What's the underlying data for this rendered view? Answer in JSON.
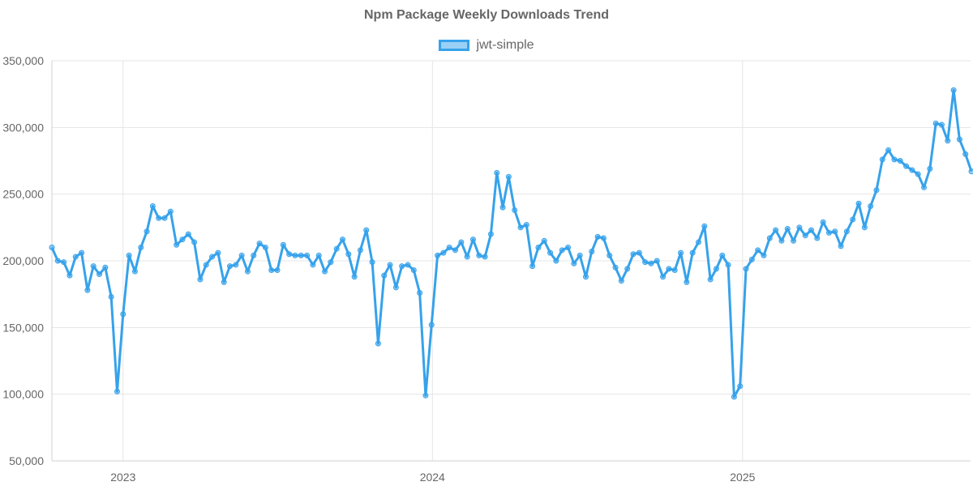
{
  "chart_data": {
    "type": "line",
    "title": "Npm Package Weekly Downloads Trend",
    "xlabel": "",
    "ylabel": "",
    "ylim": [
      50000,
      350000
    ],
    "yticks": [
      {
        "value": 50000,
        "label": "50,000"
      },
      {
        "value": 100000,
        "label": "100,000"
      },
      {
        "value": 150000,
        "label": "150,000"
      },
      {
        "value": 200000,
        "label": "200,000"
      },
      {
        "value": 250000,
        "label": "250,000"
      },
      {
        "value": 300000,
        "label": "300,000"
      },
      {
        "value": 350000,
        "label": "350,000"
      }
    ],
    "xlim": [
      "2022-10-09",
      "2025-09-27"
    ],
    "xticks": [
      {
        "value": "2023-01-01",
        "label": "2023"
      },
      {
        "value": "2024-01-01",
        "label": "2024"
      },
      {
        "value": "2025-01-01",
        "label": "2025"
      }
    ],
    "legend": "top-center",
    "grid": true,
    "colors": {
      "line": "#36a2eb",
      "fill": "rgba(54,162,235,0.5)",
      "grid": "#e5e5e5",
      "text": "#666666"
    },
    "series": [
      {
        "name": "jwt-simple",
        "start_date": "2022-10-09",
        "interval": "weekly",
        "values": [
          210000,
          200000,
          199000,
          189000,
          203000,
          206000,
          178000,
          196000,
          190000,
          195000,
          173000,
          102000,
          160000,
          204000,
          192000,
          210000,
          222000,
          241000,
          232000,
          232000,
          237000,
          212000,
          216000,
          220000,
          214000,
          186000,
          197000,
          203000,
          206000,
          184000,
          196000,
          197000,
          204000,
          192000,
          204000,
          213000,
          210000,
          193000,
          193000,
          212000,
          205000,
          204000,
          204000,
          204000,
          197000,
          204000,
          192000,
          199000,
          209000,
          216000,
          205000,
          188000,
          208000,
          223000,
          199000,
          138000,
          189000,
          197000,
          180000,
          196000,
          197000,
          193000,
          176000,
          99000,
          152000,
          204000,
          206000,
          210000,
          208000,
          214000,
          203000,
          216000,
          204000,
          203000,
          220000,
          266000,
          240000,
          263000,
          238000,
          225000,
          227000,
          196000,
          210000,
          215000,
          206000,
          200000,
          208000,
          210000,
          198000,
          204000,
          188000,
          207000,
          218000,
          217000,
          204000,
          195000,
          185000,
          194000,
          205000,
          206000,
          199000,
          198000,
          200000,
          188000,
          194000,
          193000,
          206000,
          184000,
          206000,
          214000,
          226000,
          186000,
          194000,
          204000,
          197000,
          98000,
          106000,
          194000,
          201000,
          208000,
          204000,
          217000,
          223000,
          215000,
          224000,
          215000,
          225000,
          219000,
          223000,
          217000,
          229000,
          221000,
          222000,
          211000,
          222000,
          231000,
          243000,
          225000,
          241000,
          253000,
          276000,
          283000,
          276000,
          275000,
          271000,
          268000,
          265000,
          255000,
          269000,
          303000,
          302000,
          290000,
          328000,
          291000,
          280000,
          267000
        ]
      }
    ]
  }
}
